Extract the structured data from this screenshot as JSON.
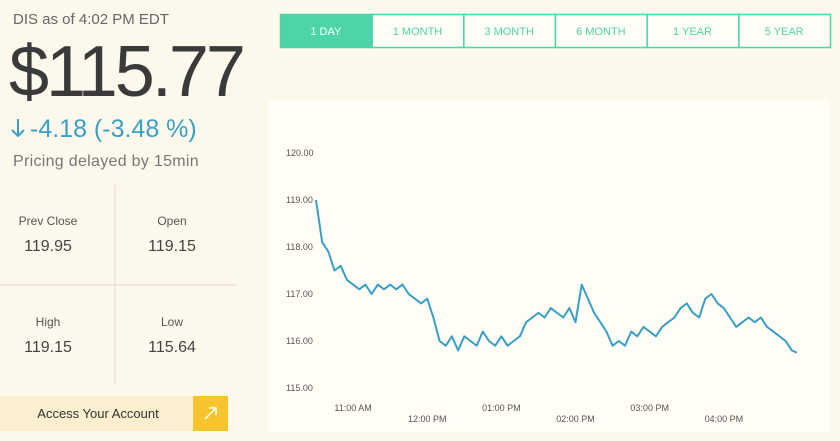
{
  "quote": {
    "heading": "DIS as of 4:02 PM EDT",
    "price": "$115.77",
    "change": "-4.18 (-3.48 %)",
    "note": "Pricing delayed by 15min"
  },
  "stats": [
    {
      "label": "Prev Close",
      "value": "119.95"
    },
    {
      "label": "Open",
      "value": "119.15"
    },
    {
      "label": "High",
      "value": "119.15"
    },
    {
      "label": "Low",
      "value": "115.64"
    }
  ],
  "button": "Access Your Account",
  "tabs": [
    "1 DAY",
    "1 MONTH",
    "3 MONTH",
    "6 MONTH",
    "1 YEAR",
    "5 YEAR"
  ],
  "active_tab": 0,
  "chart_data": {
    "type": "line",
    "color": "#3a9fc4",
    "x": [
      630,
      635,
      640,
      645,
      650,
      655,
      660,
      665,
      670,
      675,
      680,
      685,
      690,
      695,
      700,
      705,
      710,
      715,
      720,
      725,
      730,
      735,
      740,
      745,
      750,
      755,
      760,
      765,
      770,
      775,
      780,
      785,
      790,
      795,
      800,
      805,
      810,
      815,
      820,
      825,
      830,
      835,
      840,
      845,
      850,
      855,
      860,
      865,
      870,
      875,
      880,
      885,
      890,
      895,
      900,
      905,
      910,
      915,
      920,
      925,
      930,
      935,
      940,
      945,
      950,
      955,
      960,
      965,
      970,
      975,
      980,
      985,
      990,
      995,
      1000,
      1005,
      1010,
      1015,
      1019
    ],
    "values": [
      119.0,
      118.1,
      117.9,
      117.5,
      117.6,
      117.3,
      117.2,
      117.1,
      117.2,
      117.0,
      117.2,
      117.1,
      117.2,
      117.1,
      117.2,
      117.0,
      116.9,
      116.8,
      116.9,
      116.5,
      116.0,
      115.9,
      116.1,
      115.8,
      116.1,
      116.0,
      115.9,
      116.2,
      116.0,
      115.9,
      116.1,
      115.9,
      116.0,
      116.1,
      116.4,
      116.5,
      116.6,
      116.5,
      116.7,
      116.6,
      116.5,
      116.7,
      116.4,
      117.2,
      116.9,
      116.6,
      116.4,
      116.2,
      115.9,
      116.0,
      115.9,
      116.2,
      116.1,
      116.3,
      116.2,
      116.1,
      116.3,
      116.4,
      116.5,
      116.7,
      116.8,
      116.6,
      116.5,
      116.9,
      117.0,
      116.8,
      116.7,
      116.5,
      116.3,
      116.4,
      116.5,
      116.4,
      116.5,
      116.3,
      116.2,
      116.1,
      116.0,
      115.8,
      115.75
    ],
    "xlim": [
      630,
      1020
    ],
    "ylim": [
      114.8,
      121
    ],
    "xticks": [
      {
        "value": 660,
        "label": "11:00 AM"
      },
      {
        "value": 720,
        "label": "12:00 PM"
      },
      {
        "value": 780,
        "label": "01:00 PM"
      },
      {
        "value": 840,
        "label": "02:00 PM"
      },
      {
        "value": 900,
        "label": "03:00 PM"
      },
      {
        "value": 960,
        "label": "04:00 PM"
      }
    ],
    "yticks": [
      {
        "value": 115,
        "label": "115.00"
      },
      {
        "value": 116,
        "label": "116.00"
      },
      {
        "value": 117,
        "label": "117.00"
      },
      {
        "value": 118,
        "label": "118.00"
      },
      {
        "value": 119,
        "label": "119.00"
      },
      {
        "value": 120,
        "label": "120.00"
      }
    ]
  }
}
